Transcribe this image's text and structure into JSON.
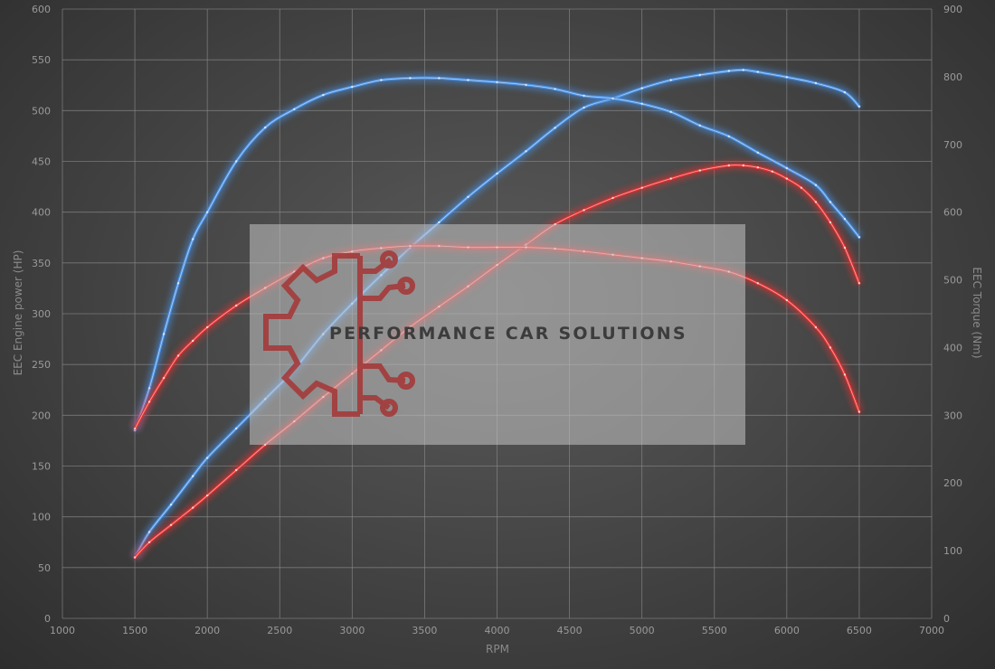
{
  "chart_data": {
    "type": "line",
    "xlabel": "RPM",
    "ylabel_left": "EEC Engine power (HP)",
    "ylabel_right": "EEC Torque (Nm)",
    "xlim": [
      1000,
      7000
    ],
    "ylim_left": [
      0,
      600
    ],
    "ylim_right": [
      0,
      900
    ],
    "x_ticks": [
      "1000",
      "1500",
      "2000",
      "2500",
      "3000",
      "3500",
      "4000",
      "4500",
      "5000",
      "5500",
      "6000",
      "6500",
      "7000"
    ],
    "y_ticks_left": [
      "0",
      "50",
      "100",
      "150",
      "200",
      "250",
      "300",
      "350",
      "400",
      "450",
      "500",
      "550",
      "600"
    ],
    "y_ticks_right": [
      "0",
      "100",
      "200",
      "300",
      "400",
      "500",
      "600",
      "700",
      "800",
      "900"
    ],
    "grid": true,
    "series": [
      {
        "key": "tuned_power",
        "axis": "left",
        "color": "#4a90e2",
        "x": [
          1500,
          1600,
          1750,
          1900,
          2000,
          2200,
          2400,
          2600,
          2800,
          3000,
          3200,
          3400,
          3600,
          3800,
          4000,
          4200,
          4400,
          4600,
          4800,
          5000,
          5200,
          5400,
          5600,
          5700,
          5800,
          6000,
          6200,
          6400,
          6500
        ],
        "y": [
          60,
          85,
          112,
          140,
          158,
          187,
          216,
          245,
          280,
          310,
          338,
          365,
          390,
          415,
          438,
          460,
          483,
          503,
          512,
          522,
          530,
          535,
          539,
          540,
          538,
          533,
          527,
          518,
          504
        ]
      },
      {
        "key": "tuned_torque",
        "axis": "right",
        "color": "#4a90e2",
        "x": [
          1500,
          1600,
          1700,
          1800,
          1900,
          2000,
          2200,
          2400,
          2600,
          2800,
          3000,
          3200,
          3400,
          3600,
          3800,
          4000,
          4200,
          4400,
          4600,
          4800,
          5000,
          5200,
          5400,
          5600,
          5800,
          6000,
          6200,
          6300,
          6400,
          6500
        ],
        "y": [
          278,
          340,
          420,
          495,
          560,
          600,
          675,
          725,
          752,
          773,
          785,
          795,
          798,
          798,
          795,
          792,
          788,
          782,
          772,
          768,
          760,
          748,
          728,
          712,
          688,
          665,
          640,
          615,
          590,
          563
        ]
      },
      {
        "key": "stock_power",
        "axis": "left",
        "color": "#e03030",
        "x": [
          1500,
          1600,
          1750,
          1900,
          2000,
          2200,
          2400,
          2600,
          2800,
          3000,
          3200,
          3400,
          3600,
          3800,
          4000,
          4200,
          4400,
          4600,
          4800,
          5000,
          5200,
          5400,
          5600,
          5700,
          5800,
          5900,
          6000,
          6100,
          6200,
          6300,
          6400,
          6500
        ],
        "y": [
          60,
          75,
          92,
          109,
          121,
          146,
          171,
          194,
          218,
          241,
          264,
          287,
          307,
          327,
          348,
          368,
          388,
          402,
          414,
          424,
          433,
          441,
          446,
          446,
          444,
          440,
          433,
          424,
          410,
          390,
          365,
          330
        ]
      },
      {
        "key": "stock_torque",
        "axis": "right",
        "color": "#e03030",
        "x": [
          1500,
          1600,
          1700,
          1800,
          1900,
          2000,
          2200,
          2400,
          2600,
          2800,
          3000,
          3200,
          3400,
          3600,
          3800,
          4000,
          4200,
          4400,
          4600,
          4800,
          5000,
          5200,
          5400,
          5600,
          5800,
          6000,
          6200,
          6300,
          6400,
          6500
        ],
        "y": [
          280,
          320,
          355,
          388,
          410,
          430,
          462,
          488,
          512,
          532,
          542,
          547,
          550,
          550,
          548,
          548,
          548,
          546,
          542,
          537,
          532,
          527,
          520,
          512,
          495,
          470,
          430,
          400,
          360,
          305
        ]
      }
    ]
  },
  "watermark": {
    "text": "PERFORMANCE CAR SOLUTIONS"
  }
}
